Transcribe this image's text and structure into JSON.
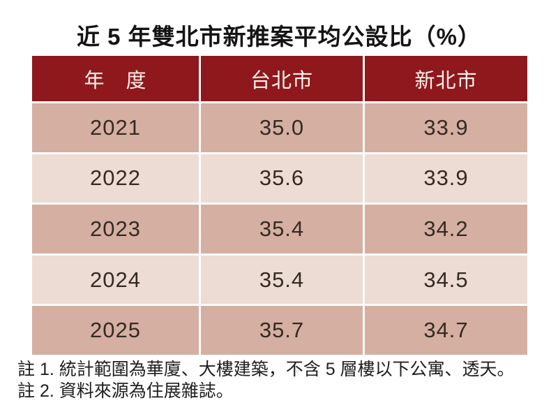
{
  "chart_data": {
    "type": "table",
    "title": "近 5 年雙北市新推案平均公設比（%）",
    "columns": [
      "年　度",
      "台北市",
      "新北市"
    ],
    "rows": [
      [
        "2021",
        "35.0",
        "33.9"
      ],
      [
        "2022",
        "35.6",
        "33.9"
      ],
      [
        "2023",
        "35.4",
        "34.2"
      ],
      [
        "2024",
        "35.4",
        "34.5"
      ],
      [
        "2025",
        "35.7",
        "34.7"
      ]
    ],
    "notes": [
      "註 1. 統計範圍為華廈、大樓建築，不含 5 層樓以下公寓、透天。",
      "註 2. 資料來源為住展雜誌。"
    ]
  },
  "colors": {
    "header_bg": "#8F181C",
    "header_text": "#FDF3EE",
    "row_odd_bg": "#D5AFA1",
    "row_even_bg": "#ECDCD3",
    "body_text": "#352A23",
    "separator": "#FFFFFF"
  }
}
